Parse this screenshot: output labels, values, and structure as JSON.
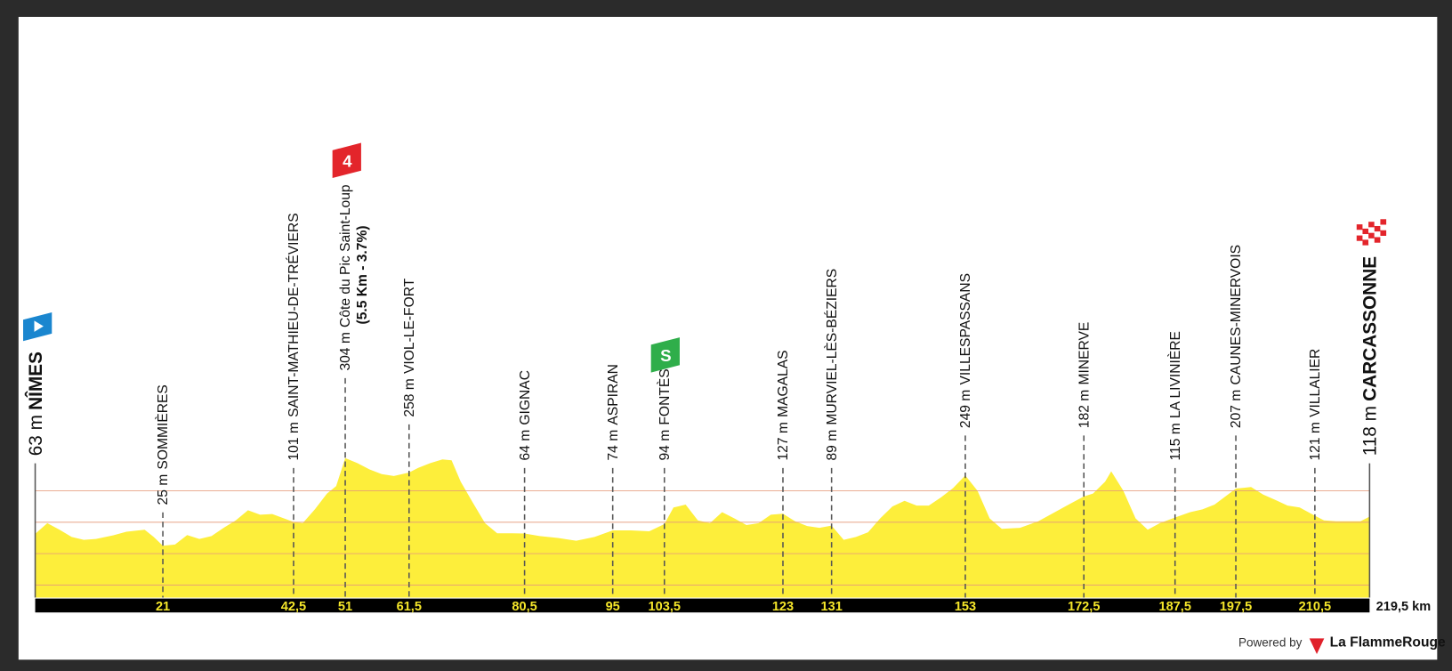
{
  "chart_data": {
    "type": "elevation-profile",
    "color": "#fdee3b",
    "grid_color": "#e59a7a",
    "xlim": [
      0,
      219.5
    ],
    "ylim": [
      -140,
      600
    ],
    "xticks": [
      0,
      {
        "value": 219.5,
        "label": "219,5 km"
      }
    ],
    "yticks": [
      -100,
      0,
      100,
      200
    ],
    "x": [
      0,
      2,
      4,
      6,
      8,
      10,
      13,
      15,
      18,
      19.5,
      21,
      23,
      25,
      27,
      29,
      31,
      33,
      35,
      37,
      39,
      42.5,
      44,
      46,
      48,
      49.5,
      51,
      53,
      55,
      57,
      59,
      61.5,
      63,
      65,
      67,
      68.5,
      70,
      72,
      74,
      76,
      78.5,
      80.5,
      83,
      86,
      89,
      92,
      95,
      98,
      101,
      103.5,
      105,
      107,
      109,
      111,
      113,
      115,
      117,
      119,
      121,
      123,
      125,
      127,
      129,
      131,
      133,
      135,
      137,
      139,
      141,
      143,
      145,
      147,
      149,
      151,
      153,
      155,
      157,
      159,
      162,
      165,
      168,
      170,
      172.5,
      174,
      176,
      177,
      179,
      181,
      183,
      185,
      187.5,
      190,
      192,
      194,
      197.5,
      200,
      202,
      204,
      206,
      208,
      210.5,
      212,
      214,
      216,
      218,
      219.5
    ],
    "values": [
      63,
      97,
      76,
      53,
      44,
      47,
      59,
      70,
      76,
      53,
      25,
      29,
      59,
      47,
      56,
      82,
      106,
      138,
      124,
      126,
      101,
      97,
      141,
      191,
      215,
      304,
      288,
      268,
      253,
      247,
      258,
      273,
      288,
      300,
      297,
      229,
      162,
      97,
      65,
      65,
      64,
      56,
      50,
      41,
      53,
      74,
      74,
      71,
      94,
      147,
      156,
      106,
      97,
      132,
      112,
      91,
      97,
      124,
      127,
      103,
      88,
      82,
      89,
      44,
      53,
      68,
      112,
      150,
      168,
      153,
      153,
      179,
      209,
      249,
      200,
      112,
      79,
      82,
      103,
      135,
      156,
      182,
      191,
      229,
      262,
      200,
      112,
      76,
      97,
      115,
      132,
      141,
      156,
      207,
      212,
      188,
      171,
      153,
      147,
      121,
      106,
      103,
      103,
      103,
      118
    ],
    "waypoints": [
      {
        "type": "start",
        "km": 0,
        "altitude": 63,
        "altitude_label": "63 m",
        "name": "NÎMES"
      },
      {
        "km": 21,
        "altitude": 25,
        "altitude_label": "25 m",
        "name": "SOMMIÈRES"
      },
      {
        "km": 42.5,
        "km_label": "42,5",
        "altitude": 101,
        "altitude_label": "101 m",
        "name": "SAINT-MATHIEU-DE-TRÉVIERS"
      },
      {
        "type": "climb",
        "badge": "4",
        "km": 51,
        "altitude": 304,
        "altitude_label": "304 m",
        "name": "Côte du Pic Saint-Loup",
        "detail": "(5.5 Km - 3.7%)"
      },
      {
        "km": 61.5,
        "km_label": "61,5",
        "altitude": 258,
        "altitude_label": "258 m",
        "name": "VIOL-LE-FORT"
      },
      {
        "km": 80.5,
        "km_label": "80,5",
        "altitude": 64,
        "altitude_label": "64 m",
        "name": "GIGNAC"
      },
      {
        "km": 95,
        "altitude": 74,
        "altitude_label": "74 m",
        "name": "ASPIRAN"
      },
      {
        "type": "sprint",
        "badge": "S",
        "km": 103.5,
        "km_label": "103,5",
        "altitude": 94,
        "altitude_label": "94 m",
        "name": "FONTÈS"
      },
      {
        "km": 123,
        "altitude": 127,
        "altitude_label": "127 m",
        "name": "MAGALAS"
      },
      {
        "km": 131,
        "altitude": 89,
        "altitude_label": "89 m",
        "name": "MURVIEL-LÈS-BÉZIERS"
      },
      {
        "km": 153,
        "altitude": 249,
        "altitude_label": "249 m",
        "name": "VILLESPASSANS"
      },
      {
        "km": 172.5,
        "km_label": "172,5",
        "altitude": 182,
        "altitude_label": "182 m",
        "name": "MINERVE"
      },
      {
        "km": 187.5,
        "km_label": "187,5",
        "altitude": 115,
        "altitude_label": "115 m",
        "name": "LA LIVINIÈRE"
      },
      {
        "km": 197.5,
        "km_label": "197,5",
        "altitude": 207,
        "altitude_label": "207 m",
        "name": "CAUNES-MINERVOIS"
      },
      {
        "km": 210.5,
        "km_label": "210,5",
        "altitude": 121,
        "altitude_label": "121 m",
        "name": "VILLALIER"
      },
      {
        "type": "finish",
        "km": 219.5,
        "altitude": 118,
        "altitude_label": "118 m",
        "name": "CARCASSONNE"
      }
    ]
  },
  "footer": {
    "powered_by": "Powered by",
    "brand": "La FlammeRouge"
  }
}
